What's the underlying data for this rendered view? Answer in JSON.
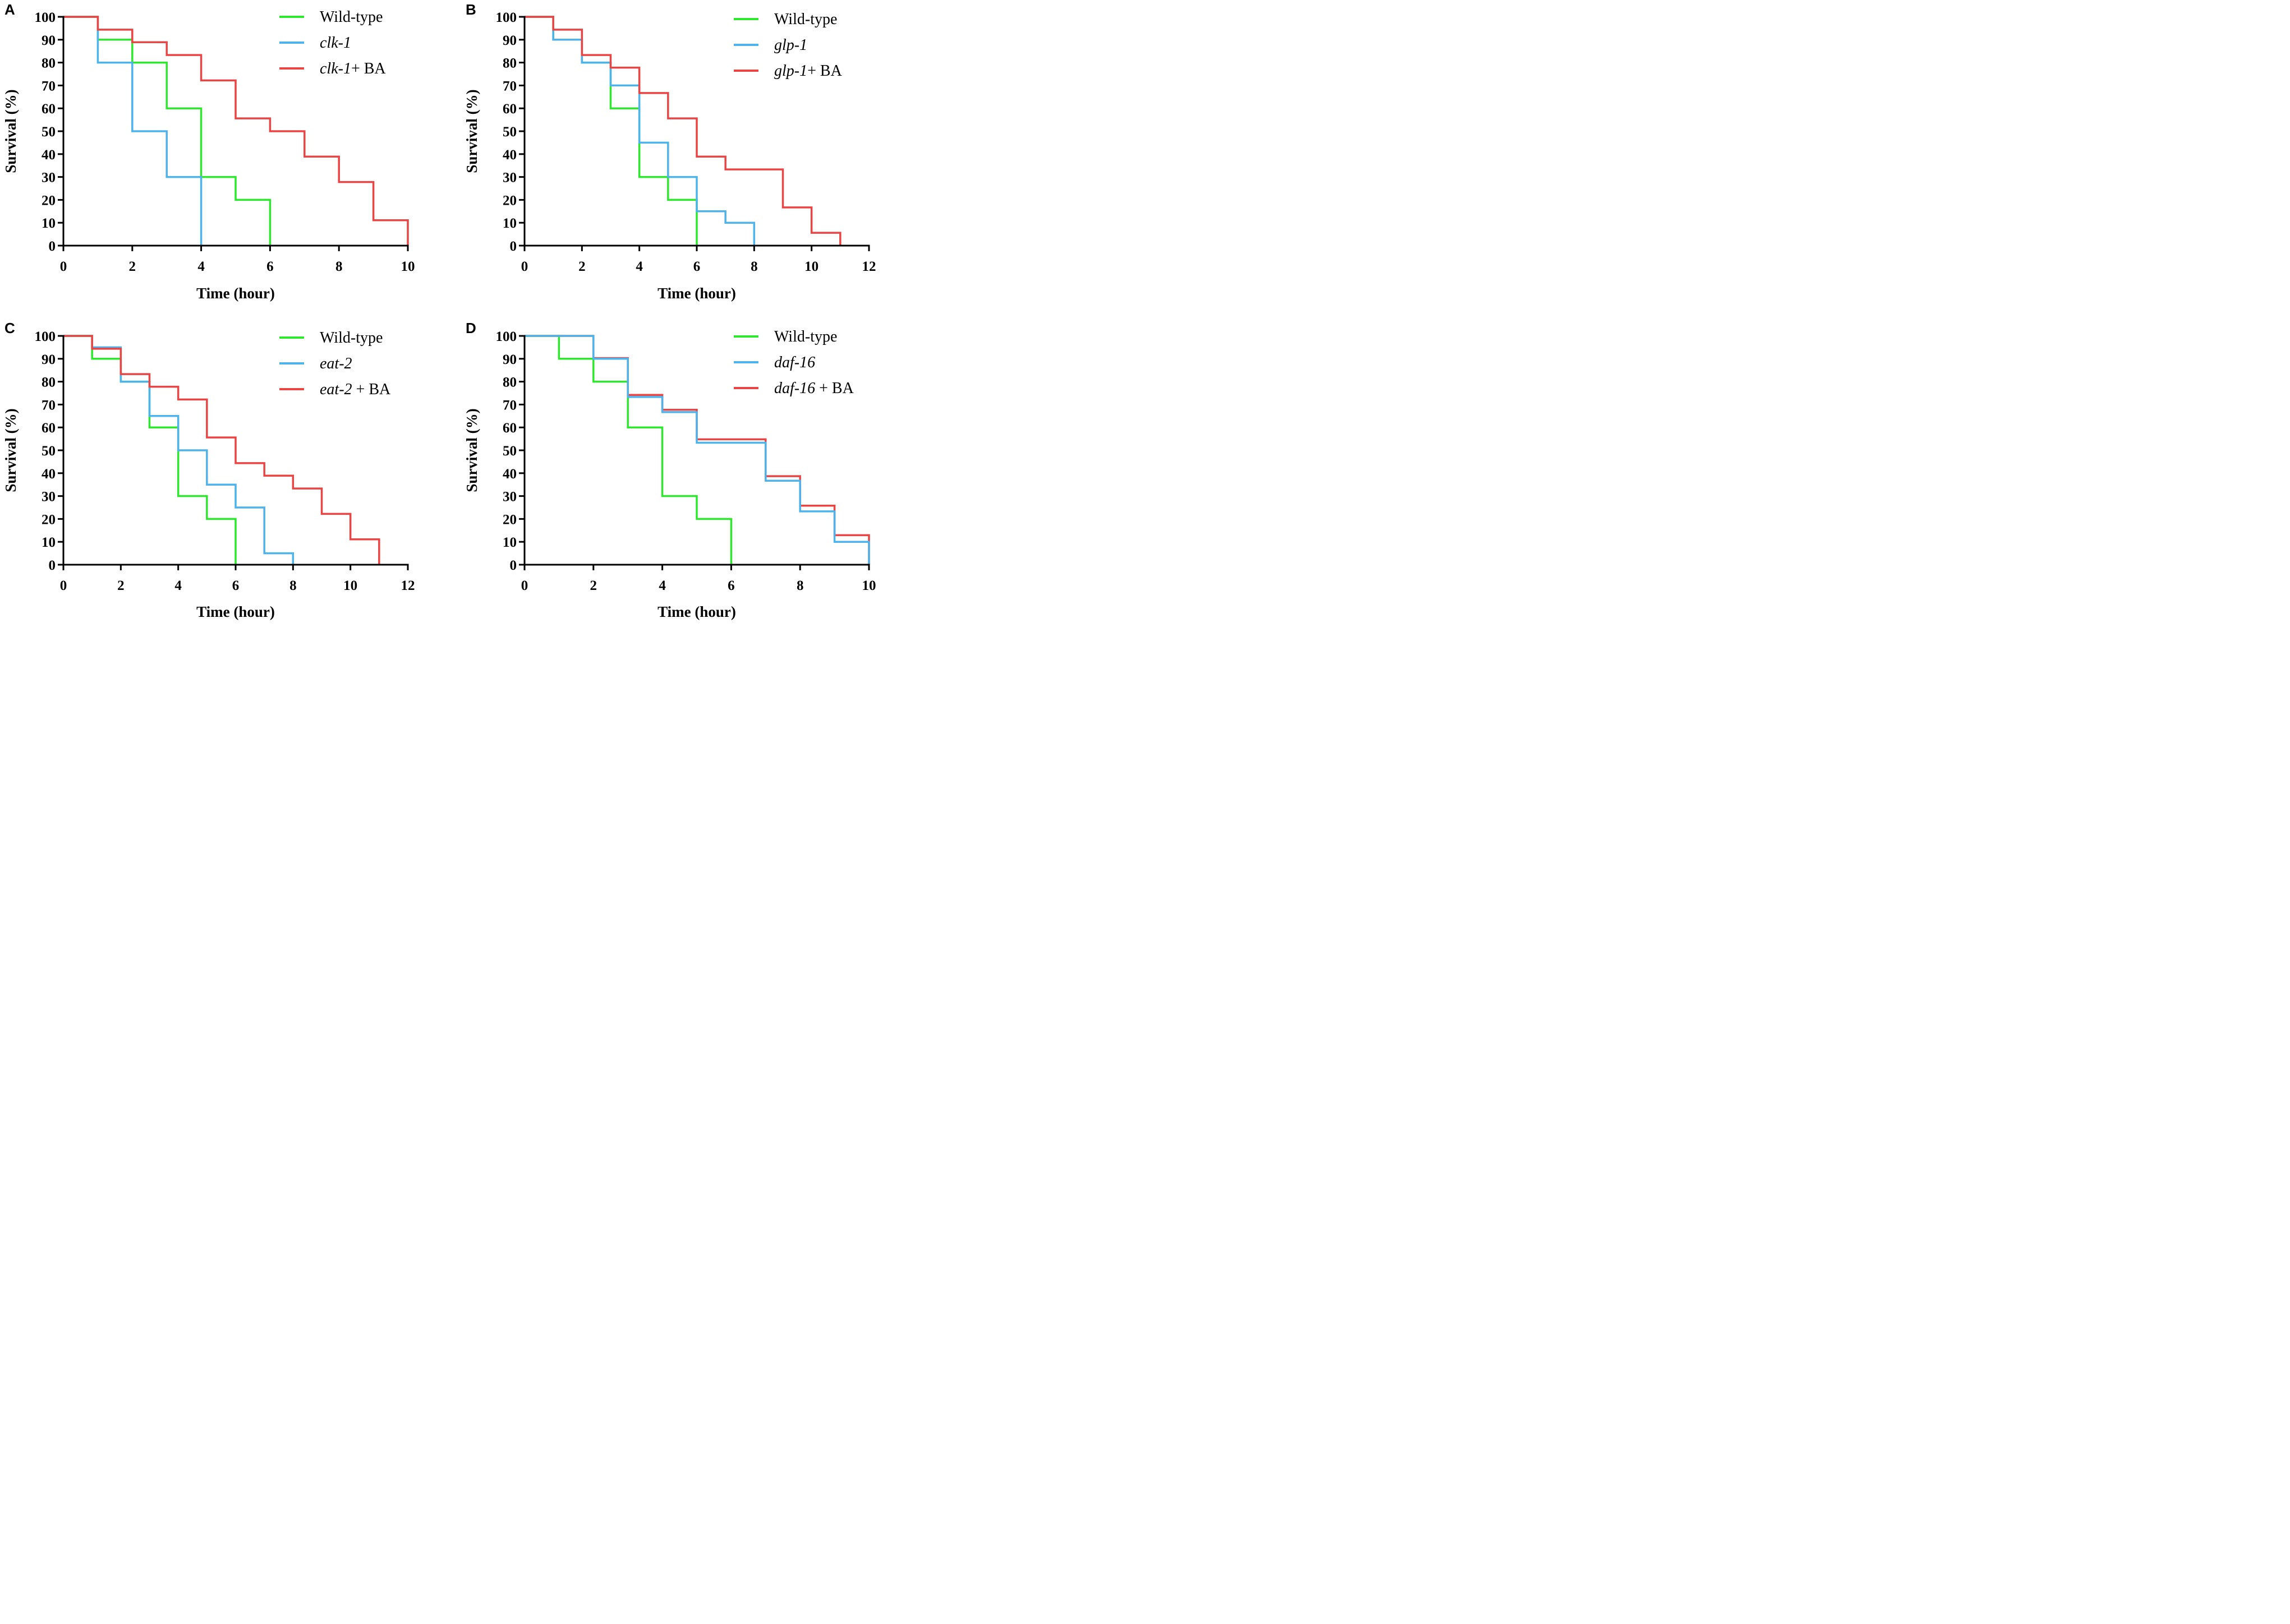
{
  "chart_data": [
    {
      "panel": "A",
      "type": "line",
      "step": true,
      "xlabel": "Time (hour)",
      "ylabel": "Survival (%)",
      "xlim": [
        0,
        10
      ],
      "ylim": [
        0,
        100
      ],
      "xticks": [
        0,
        2,
        4,
        6,
        8,
        10
      ],
      "yticks": [
        0,
        10,
        20,
        30,
        40,
        50,
        60,
        70,
        80,
        90,
        100
      ],
      "legend_position": "top-right",
      "series": [
        {
          "name": "Wild-type",
          "name_italic": "",
          "name_suffix": "",
          "color": "#2ee82e",
          "x": [
            0,
            1,
            2,
            3,
            4,
            5,
            6
          ],
          "y": [
            100,
            90,
            80,
            60,
            30,
            20,
            0
          ]
        },
        {
          "name": "clk-1",
          "name_italic": "clk-1",
          "name_suffix": "",
          "color": "#4db3ea",
          "x": [
            0,
            1,
            2,
            3,
            4
          ],
          "y": [
            100,
            80,
            50,
            30,
            0
          ]
        },
        {
          "name": "clk-1+ BA",
          "name_italic": "clk-1",
          "name_suffix": "+ BA",
          "color": "#ea4545",
          "x": [
            0,
            1,
            2,
            3,
            4,
            5,
            6,
            7,
            8,
            9,
            10
          ],
          "y": [
            100,
            94.4,
            88.9,
            83.3,
            72.2,
            55.6,
            50,
            38.9,
            27.8,
            11.1,
            0
          ]
        }
      ]
    },
    {
      "panel": "B",
      "type": "line",
      "step": true,
      "xlabel": "Time (hour)",
      "ylabel": "Survival (%)",
      "xlim": [
        0,
        12
      ],
      "ylim": [
        0,
        100
      ],
      "xticks": [
        0,
        2,
        4,
        6,
        8,
        10,
        12
      ],
      "yticks": [
        0,
        10,
        20,
        30,
        40,
        50,
        60,
        70,
        80,
        90,
        100
      ],
      "legend_position": "top-right",
      "series": [
        {
          "name": "Wild-type",
          "name_italic": "",
          "name_suffix": "",
          "color": "#2ee82e",
          "x": [
            0,
            1,
            2,
            3,
            4,
            5,
            6
          ],
          "y": [
            100,
            90,
            80,
            60,
            30,
            20,
            0
          ]
        },
        {
          "name": "glp-1",
          "name_italic": "glp-1",
          "name_suffix": "",
          "color": "#4db3ea",
          "x": [
            0,
            1,
            2,
            3,
            4,
            5,
            6,
            7,
            8
          ],
          "y": [
            100,
            90,
            80,
            70,
            45,
            30,
            15,
            10,
            0
          ]
        },
        {
          "name": "glp-1+ BA",
          "name_italic": "glp-1",
          "name_suffix": "+ BA",
          "color": "#ea4545",
          "x": [
            0,
            1,
            2,
            3,
            4,
            5,
            6,
            7,
            9,
            10,
            11
          ],
          "y": [
            100,
            94.4,
            83.3,
            77.8,
            66.7,
            55.6,
            38.9,
            33.3,
            16.7,
            5.6,
            0
          ]
        }
      ]
    },
    {
      "panel": "C",
      "type": "line",
      "step": true,
      "xlabel": "Time (hour)",
      "ylabel": "Survival (%)",
      "xlim": [
        0,
        12
      ],
      "ylim": [
        0,
        100
      ],
      "xticks": [
        0,
        2,
        4,
        6,
        8,
        10,
        12
      ],
      "yticks": [
        0,
        10,
        20,
        30,
        40,
        50,
        60,
        70,
        80,
        90,
        100
      ],
      "legend_position": "top-right",
      "series": [
        {
          "name": "Wild-type",
          "name_italic": "",
          "name_suffix": "",
          "color": "#2ee82e",
          "x": [
            0,
            1,
            2,
            3,
            4,
            5,
            6
          ],
          "y": [
            100,
            90,
            80,
            60,
            30,
            20,
            0
          ]
        },
        {
          "name": "eat-2",
          "name_italic": "eat-2",
          "name_suffix": "",
          "color": "#4db3ea",
          "x": [
            0,
            1,
            2,
            3,
            4,
            5,
            6,
            7,
            8
          ],
          "y": [
            100,
            95,
            80,
            65,
            50,
            35,
            25,
            5,
            0
          ]
        },
        {
          "name": "eat-2 + BA",
          "name_italic": "eat-2",
          "name_suffix": " + BA",
          "color": "#ea4545",
          "x": [
            0,
            1,
            2,
            3,
            4,
            5,
            6,
            7,
            8,
            9,
            10,
            11
          ],
          "y": [
            100,
            94.4,
            83.3,
            77.8,
            72.2,
            55.6,
            44.4,
            38.9,
            33.3,
            22.2,
            11.1,
            0
          ]
        }
      ]
    },
    {
      "panel": "D",
      "type": "line",
      "step": true,
      "xlabel": "Time (hour)",
      "ylabel": "Survival (%)",
      "xlim": [
        0,
        10
      ],
      "ylim": [
        0,
        100
      ],
      "xticks": [
        0,
        2,
        4,
        6,
        8,
        10
      ],
      "yticks": [
        0,
        10,
        20,
        30,
        40,
        50,
        60,
        70,
        80,
        90,
        100
      ],
      "legend_position": "top-right",
      "series": [
        {
          "name": "Wild-type",
          "name_italic": "",
          "name_suffix": "",
          "color": "#2ee82e",
          "x": [
            0,
            1,
            2,
            3,
            4,
            5,
            6
          ],
          "y": [
            100,
            90,
            80,
            60,
            30,
            20,
            0
          ]
        },
        {
          "name": "daf-16 + BA",
          "name_italic": "daf-16",
          "name_suffix": " + BA",
          "color": "#ea4545",
          "x": [
            0,
            2,
            3,
            4,
            5,
            7,
            8,
            9,
            10
          ],
          "y": [
            100,
            90.3,
            74.2,
            67.7,
            54.8,
            38.7,
            25.8,
            12.9,
            0
          ]
        },
        {
          "name": "daf-16",
          "name_italic": "daf-16",
          "name_suffix": "",
          "color": "#4db3ea",
          "x": [
            0,
            2,
            3,
            4,
            5,
            7,
            8,
            9,
            10
          ],
          "y": [
            100,
            90,
            73.3,
            66.7,
            53.3,
            36.7,
            23.3,
            10,
            0
          ]
        }
      ],
      "legend_order": [
        0,
        2,
        1
      ]
    }
  ]
}
